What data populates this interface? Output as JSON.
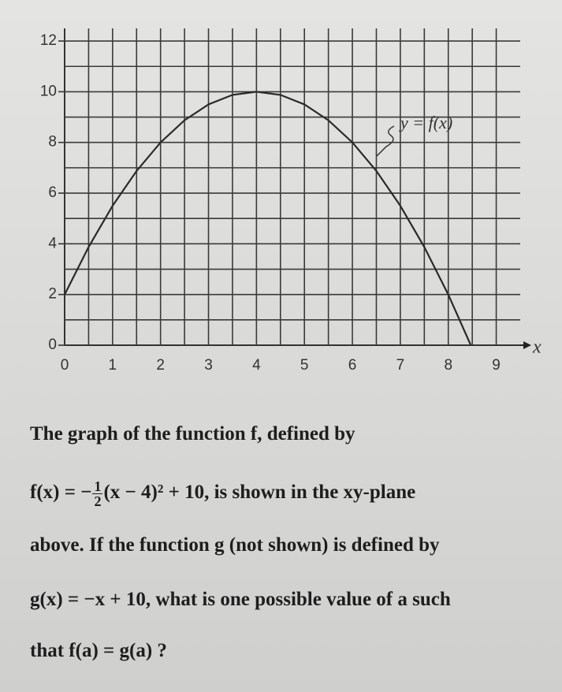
{
  "chart_data": {
    "type": "line",
    "x": [
      0,
      0.5,
      1,
      1.5,
      2,
      2.5,
      3,
      3.5,
      4,
      4.5,
      5,
      5.5,
      6,
      6.5,
      7,
      7.5,
      8,
      8.47
    ],
    "values": [
      2,
      3.875,
      5.5,
      6.875,
      8,
      8.875,
      9.5,
      9.875,
      10,
      9.875,
      9.5,
      8.875,
      8,
      6.875,
      5.5,
      3.875,
      2,
      0
    ],
    "color": "#2a2a2a",
    "xlim": [
      0,
      9.5
    ],
    "ylim": [
      0,
      12.5
    ],
    "xticks": [
      0,
      1,
      2,
      3,
      4,
      5,
      6,
      7,
      8,
      9
    ],
    "yticks": [
      0,
      2,
      4,
      6,
      8,
      10,
      12
    ],
    "grid": true,
    "minor_grid": true,
    "x_label": "x",
    "annotation": "y = f(x)"
  },
  "question": {
    "line1": "The graph of the function f, defined by",
    "line2": {
      "before": "f(x) = −",
      "num": "1",
      "den": "2",
      "after": "(x − 4)² + 10, is shown in the xy-plane"
    },
    "line3": "above. If the function g (not shown) is defined by",
    "line4": "g(x) = −x + 10, what is one possible value of a such",
    "line5": "that f(a) = g(a) ?"
  }
}
